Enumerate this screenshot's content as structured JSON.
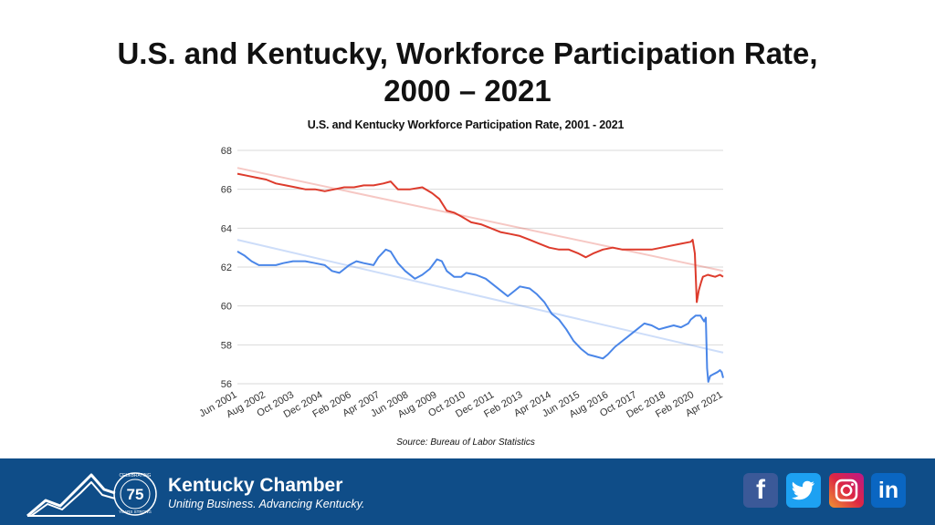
{
  "slide": {
    "title_line1": "U.S. and Kentucky, Workforce Participation Rate,",
    "title_line2": "2000 – 2021"
  },
  "chart_data": {
    "type": "line",
    "title": "U.S. and Kentucky Workforce Participation Rate, 2001 - 2021",
    "source": "Source: Bureau of Labor Statistics",
    "xlabel": "",
    "ylabel": "",
    "ylim": [
      56,
      68
    ],
    "yticks": [
      56,
      58,
      60,
      62,
      64,
      66,
      68
    ],
    "grid": true,
    "legend": "none",
    "xticks": [
      "Jun 2001",
      "Aug 2002",
      "Oct 2003",
      "Dec 2004",
      "Feb 2006",
      "Apr 2007",
      "Jun 2008",
      "Aug 2009",
      "Oct 2010",
      "Dec 2011",
      "Feb 2013",
      "Apr 2014",
      "Jun 2015",
      "Aug 2016",
      "Oct 2017",
      "Dec 2018",
      "Feb 2020",
      "Apr 2021"
    ],
    "x_end": 2021.33,
    "series": [
      {
        "color": "#dd3b2c",
        "points": [
          [
            2001.42,
            66.8
          ],
          [
            2001.8,
            66.7
          ],
          [
            2002.2,
            66.6
          ],
          [
            2002.6,
            66.5
          ],
          [
            2003.0,
            66.3
          ],
          [
            2003.4,
            66.2
          ],
          [
            2003.8,
            66.1
          ],
          [
            2004.2,
            66.0
          ],
          [
            2004.6,
            66.0
          ],
          [
            2005.0,
            65.9
          ],
          [
            2005.4,
            66.0
          ],
          [
            2005.8,
            66.1
          ],
          [
            2006.2,
            66.1
          ],
          [
            2006.6,
            66.2
          ],
          [
            2007.0,
            66.2
          ],
          [
            2007.4,
            66.3
          ],
          [
            2007.7,
            66.4
          ],
          [
            2008.0,
            66.0
          ],
          [
            2008.5,
            66.0
          ],
          [
            2009.0,
            66.1
          ],
          [
            2009.4,
            65.8
          ],
          [
            2009.7,
            65.5
          ],
          [
            2010.0,
            64.9
          ],
          [
            2010.3,
            64.8
          ],
          [
            2010.6,
            64.6
          ],
          [
            2011.0,
            64.3
          ],
          [
            2011.4,
            64.2
          ],
          [
            2011.8,
            64.0
          ],
          [
            2012.2,
            63.8
          ],
          [
            2012.6,
            63.7
          ],
          [
            2013.0,
            63.6
          ],
          [
            2013.4,
            63.4
          ],
          [
            2013.8,
            63.2
          ],
          [
            2014.2,
            63.0
          ],
          [
            2014.6,
            62.9
          ],
          [
            2015.0,
            62.9
          ],
          [
            2015.4,
            62.7
          ],
          [
            2015.7,
            62.5
          ],
          [
            2016.0,
            62.7
          ],
          [
            2016.4,
            62.9
          ],
          [
            2016.8,
            63.0
          ],
          [
            2017.2,
            62.9
          ],
          [
            2017.6,
            62.9
          ],
          [
            2018.0,
            62.9
          ],
          [
            2018.4,
            62.9
          ],
          [
            2018.8,
            63.0
          ],
          [
            2019.2,
            63.1
          ],
          [
            2019.6,
            63.2
          ],
          [
            2020.0,
            63.3
          ],
          [
            2020.08,
            63.4
          ],
          [
            2020.17,
            62.7
          ],
          [
            2020.25,
            60.2
          ],
          [
            2020.33,
            60.8
          ],
          [
            2020.42,
            61.2
          ],
          [
            2020.5,
            61.5
          ],
          [
            2020.7,
            61.6
          ],
          [
            2021.0,
            61.5
          ],
          [
            2021.2,
            61.6
          ],
          [
            2021.33,
            61.5
          ]
        ],
        "trend": [
          [
            2001.42,
            67.1
          ],
          [
            2021.33,
            61.8
          ]
        ]
      },
      {
        "color": "#4a86e8",
        "points": [
          [
            2001.42,
            62.8
          ],
          [
            2001.7,
            62.6
          ],
          [
            2002.0,
            62.3
          ],
          [
            2002.3,
            62.1
          ],
          [
            2002.6,
            62.1
          ],
          [
            2003.0,
            62.1
          ],
          [
            2003.3,
            62.2
          ],
          [
            2003.7,
            62.3
          ],
          [
            2004.2,
            62.3
          ],
          [
            2004.6,
            62.2
          ],
          [
            2005.0,
            62.1
          ],
          [
            2005.3,
            61.8
          ],
          [
            2005.6,
            61.7
          ],
          [
            2006.0,
            62.1
          ],
          [
            2006.3,
            62.3
          ],
          [
            2006.6,
            62.2
          ],
          [
            2007.0,
            62.1
          ],
          [
            2007.2,
            62.5
          ],
          [
            2007.5,
            62.9
          ],
          [
            2007.7,
            62.8
          ],
          [
            2008.0,
            62.2
          ],
          [
            2008.3,
            61.8
          ],
          [
            2008.7,
            61.4
          ],
          [
            2009.0,
            61.6
          ],
          [
            2009.3,
            61.9
          ],
          [
            2009.6,
            62.4
          ],
          [
            2009.8,
            62.3
          ],
          [
            2010.0,
            61.8
          ],
          [
            2010.3,
            61.5
          ],
          [
            2010.6,
            61.5
          ],
          [
            2010.8,
            61.7
          ],
          [
            2011.2,
            61.6
          ],
          [
            2011.6,
            61.4
          ],
          [
            2012.0,
            61.0
          ],
          [
            2012.3,
            60.7
          ],
          [
            2012.5,
            60.5
          ],
          [
            2012.8,
            60.8
          ],
          [
            2013.0,
            61.0
          ],
          [
            2013.4,
            60.9
          ],
          [
            2013.7,
            60.6
          ],
          [
            2014.0,
            60.2
          ],
          [
            2014.3,
            59.6
          ],
          [
            2014.6,
            59.3
          ],
          [
            2014.9,
            58.8
          ],
          [
            2015.2,
            58.2
          ],
          [
            2015.5,
            57.8
          ],
          [
            2015.8,
            57.5
          ],
          [
            2016.1,
            57.4
          ],
          [
            2016.4,
            57.3
          ],
          [
            2016.6,
            57.5
          ],
          [
            2016.9,
            57.9
          ],
          [
            2017.2,
            58.2
          ],
          [
            2017.5,
            58.5
          ],
          [
            2017.8,
            58.8
          ],
          [
            2018.1,
            59.1
          ],
          [
            2018.4,
            59.0
          ],
          [
            2018.7,
            58.8
          ],
          [
            2019.0,
            58.9
          ],
          [
            2019.3,
            59.0
          ],
          [
            2019.6,
            58.9
          ],
          [
            2019.9,
            59.1
          ],
          [
            2020.0,
            59.3
          ],
          [
            2020.2,
            59.5
          ],
          [
            2020.4,
            59.5
          ],
          [
            2020.5,
            59.3
          ],
          [
            2020.55,
            59.2
          ],
          [
            2020.62,
            59.4
          ],
          [
            2020.67,
            56.8
          ],
          [
            2020.72,
            56.1
          ],
          [
            2020.8,
            56.4
          ],
          [
            2020.95,
            56.5
          ],
          [
            2021.1,
            56.6
          ],
          [
            2021.2,
            56.7
          ],
          [
            2021.27,
            56.6
          ],
          [
            2021.33,
            56.3
          ]
        ],
        "trend": [
          [
            2001.42,
            63.4
          ],
          [
            2021.33,
            57.6
          ]
        ]
      }
    ]
  },
  "footer": {
    "badge_number": "75",
    "badge_top_text": "CELEBRATING",
    "badge_bottom_text": "YEARS STRONG",
    "brand_name": "Kentucky Chamber",
    "brand_tagline": "Uniting Business. Advancing Kentucky.",
    "social": [
      {
        "name": "facebook",
        "glyph": "f"
      },
      {
        "name": "twitter",
        "glyph": ""
      },
      {
        "name": "instagram",
        "glyph": ""
      },
      {
        "name": "linkedin",
        "glyph": "in"
      }
    ]
  }
}
